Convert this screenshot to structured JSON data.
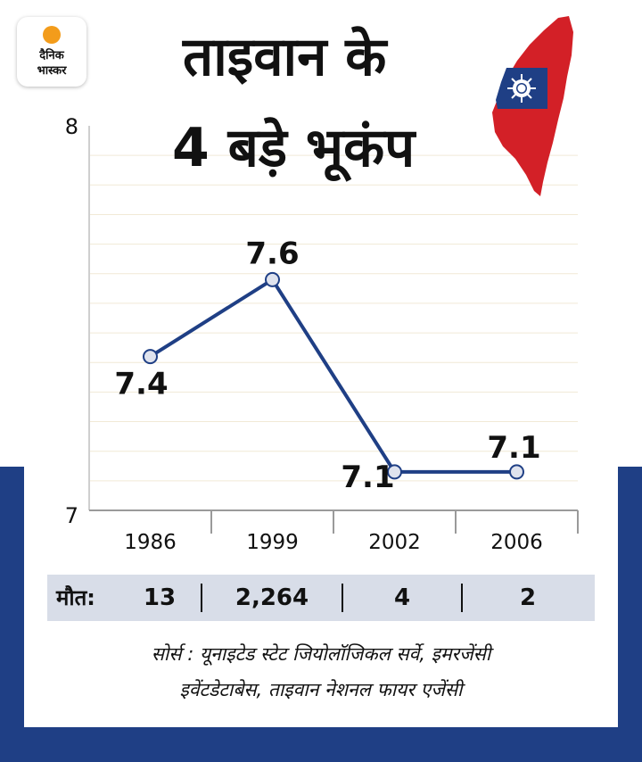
{
  "brand": {
    "line1": "दैनिक",
    "line2": "भास्कर"
  },
  "title": {
    "line1": "ताइवान के",
    "line2": "4 बड़े भूकंप"
  },
  "chart_data": {
    "type": "line",
    "title": "ताइवान के 4 बड़े भूकंप",
    "xlabel": "",
    "ylabel": "",
    "categories": [
      "1986",
      "1999",
      "2002",
      "2006"
    ],
    "values": [
      7.4,
      7.6,
      7.1,
      7.1
    ],
    "value_labels": [
      "7.4",
      "7.6",
      "7.1",
      "7.1"
    ],
    "ylim": [
      7,
      8
    ],
    "y_ticks": [
      "8",
      "7"
    ],
    "grid": true,
    "series_color": "#1f3f85"
  },
  "deaths": {
    "label": "मौत:",
    "values": [
      "13",
      "2,264",
      "4",
      "2"
    ]
  },
  "source": {
    "line1": "सोर्स : यूनाइटेड स्टेट जियोलॉजिकल सर्वे, इमरजेंसी",
    "line2": "इवेंटडेटाबेस, ताइवान नेशनल फायर एजेंसी"
  },
  "colors": {
    "navy": "#1f3f85",
    "flag_red": "#d32027",
    "flag_blue": "#1f3f85",
    "logo_orange": "#f39c1b",
    "deaths_bg": "#d8dde8"
  },
  "icons": {
    "flag": "taiwan-map-flag-icon",
    "sun": "logo-sun-icon"
  }
}
